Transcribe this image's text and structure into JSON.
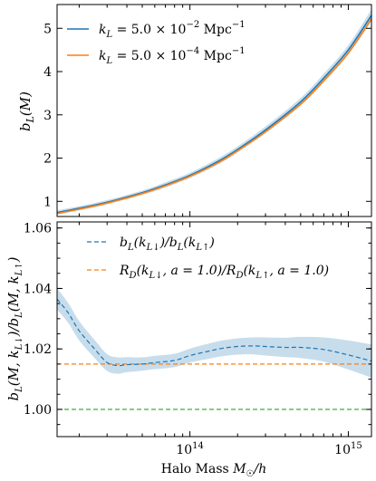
{
  "chart_data": [
    {
      "type": "line",
      "panel": "top",
      "ylabel": "b_L(M)",
      "ylim": [
        0.65,
        5.55
      ],
      "xlim": [
        14500000000000.0,
        1400000000000000.0
      ],
      "xscale": "log",
      "yticks": [
        1,
        2,
        3,
        4,
        5
      ],
      "ytick_labels": [
        "1",
        "2",
        "3",
        "4",
        "5"
      ],
      "legend": "top-left",
      "series": [
        {
          "name": "k_L = 5.0 × 10^−2 Mpc^−1",
          "color": "#1f77b4",
          "x": [
            14500000000000.0,
            20000000000000.0,
            30000000000000.0,
            50000000000000.0,
            70000000000000.0,
            100000000000000.0,
            150000000000000.0,
            200000000000000.0,
            300000000000000.0,
            500000000000000.0,
            700000000000000.0,
            1000000000000000.0,
            1400000000000000.0
          ],
          "y": [
            0.74,
            0.84,
            0.98,
            1.2,
            1.38,
            1.6,
            1.92,
            2.2,
            2.65,
            3.3,
            3.85,
            4.5,
            5.3
          ],
          "band": [
            0.05,
            0.05,
            0.05,
            0.05,
            0.06,
            0.06,
            0.07,
            0.07,
            0.08,
            0.09,
            0.1,
            0.11,
            0.14
          ]
        },
        {
          "name": "k_L = 5.0 × 10^−4 Mpc^−1",
          "color": "#ff7f0e",
          "x": [
            14500000000000.0,
            20000000000000.0,
            30000000000000.0,
            50000000000000.0,
            70000000000000.0,
            100000000000000.0,
            150000000000000.0,
            200000000000000.0,
            300000000000000.0,
            500000000000000.0,
            700000000000000.0,
            1000000000000000.0,
            1400000000000000.0
          ],
          "y": [
            0.72,
            0.82,
            0.96,
            1.18,
            1.36,
            1.58,
            1.89,
            2.17,
            2.61,
            3.25,
            3.79,
            4.43,
            5.22
          ]
        }
      ]
    },
    {
      "type": "line",
      "panel": "bottom",
      "ylabel": "b_L(M, k_L↓)/b_L(M, k_L↑)",
      "xlabel": "Halo Mass M☉/h",
      "ylim": [
        0.991,
        1.062
      ],
      "xlim": [
        14500000000000.0,
        1400000000000000.0
      ],
      "xscale": "log",
      "yticks": [
        1.0,
        1.02,
        1.04,
        1.06
      ],
      "ytick_labels": [
        "1.00",
        "1.02",
        "1.04",
        "1.06"
      ],
      "xtick_values": [
        100000000000000.0,
        1000000000000000.0
      ],
      "xtick_labels": [
        "10^14",
        "10^15"
      ],
      "legend": "top-left",
      "series": [
        {
          "name": "b_L(k_L↓)/b_L(k_L↑)",
          "color": "#1f77b4",
          "style": "dashed",
          "x": [
            14500000000000.0,
            17000000000000.0,
            20000000000000.0,
            25000000000000.0,
            30000000000000.0,
            35000000000000.0,
            40000000000000.0,
            50000000000000.0,
            60000000000000.0,
            80000000000000.0,
            100000000000000.0,
            130000000000000.0,
            160000000000000.0,
            200000000000000.0,
            250000000000000.0,
            300000000000000.0,
            400000000000000.0,
            500000000000000.0,
            700000000000000.0,
            1000000000000000.0,
            1400000000000000.0
          ],
          "y": [
            1.0365,
            1.032,
            1.026,
            1.02,
            1.0155,
            1.0145,
            1.0148,
            1.015,
            1.0155,
            1.0162,
            1.0178,
            1.0192,
            1.0202,
            1.0208,
            1.021,
            1.0208,
            1.0205,
            1.0205,
            1.0198,
            1.018,
            1.016
          ],
          "band": [
            0.0035,
            0.0033,
            0.0032,
            0.003,
            0.0028,
            0.0027,
            0.0025,
            0.0022,
            0.0022,
            0.0022,
            0.0023,
            0.0025,
            0.0026,
            0.0027,
            0.0028,
            0.003,
            0.0032,
            0.0035,
            0.004,
            0.0048,
            0.0055
          ]
        },
        {
          "name": "R_D(k_L↓, a = 1.0)/R_D(k_L↑, a = 1.0)",
          "color": "#ff7f0e",
          "style": "dashed",
          "constant": 1.015
        },
        {
          "name": "",
          "color": "#2ca02c",
          "style": "dashed",
          "constant": 1.0
        }
      ]
    }
  ]
}
